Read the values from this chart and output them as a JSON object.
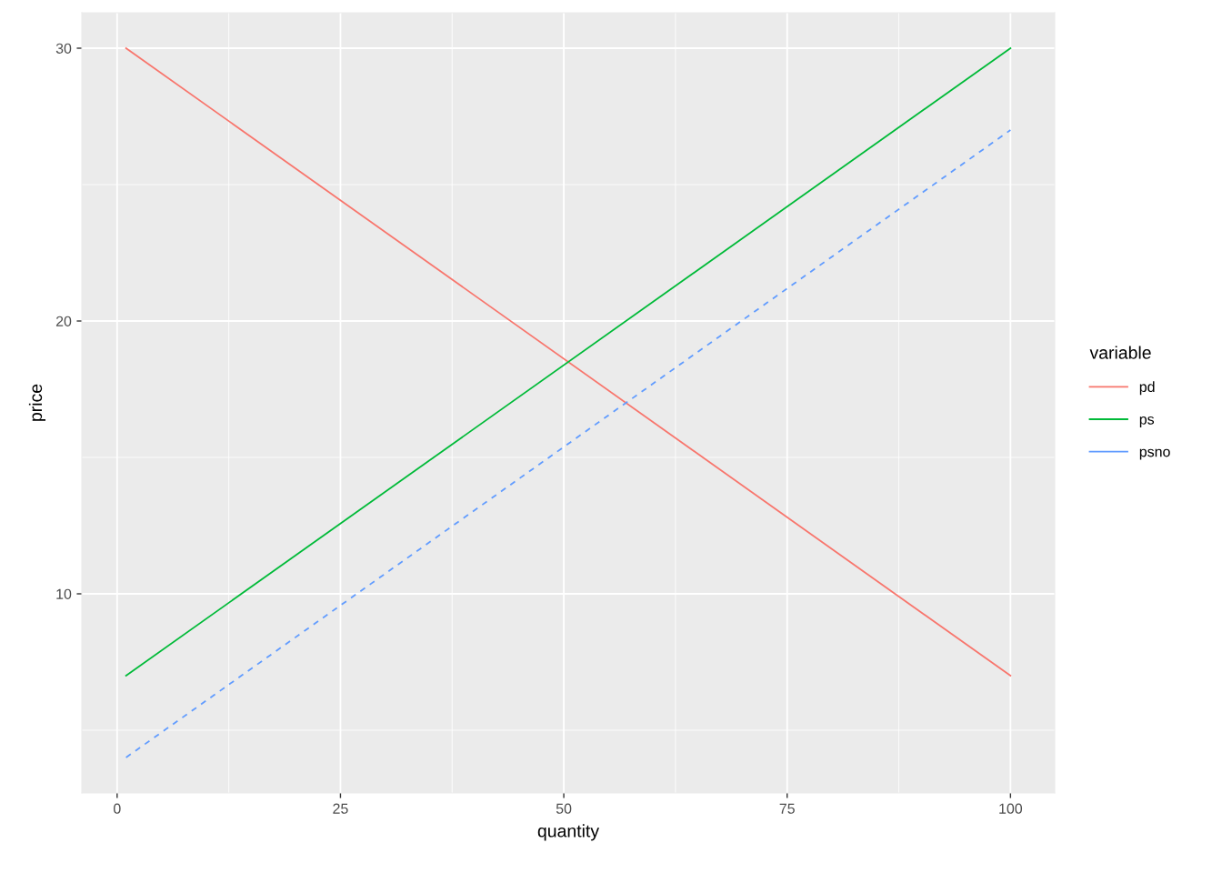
{
  "chart_data": {
    "type": "line",
    "xlabel": "quantity",
    "ylabel": "price",
    "legend_title": "variable",
    "x": [
      1,
      100
    ],
    "series": [
      {
        "name": "pd",
        "color": "#F8766D",
        "values": [
          30,
          7
        ]
      },
      {
        "name": "ps",
        "color": "#00BA38",
        "values": [
          7,
          30
        ]
      },
      {
        "name": "psno",
        "color": "#619CFF",
        "values": [
          4,
          27
        ],
        "line_style": "dashed"
      }
    ],
    "line_style": "solid",
    "xlim": [
      -3.95,
      104.95
    ],
    "ylim": [
      2.7,
      31.3
    ],
    "xticks": [
      0,
      25,
      50,
      75,
      100
    ],
    "yticks": [
      10,
      20,
      30
    ],
    "grid": true,
    "legend": "right"
  }
}
